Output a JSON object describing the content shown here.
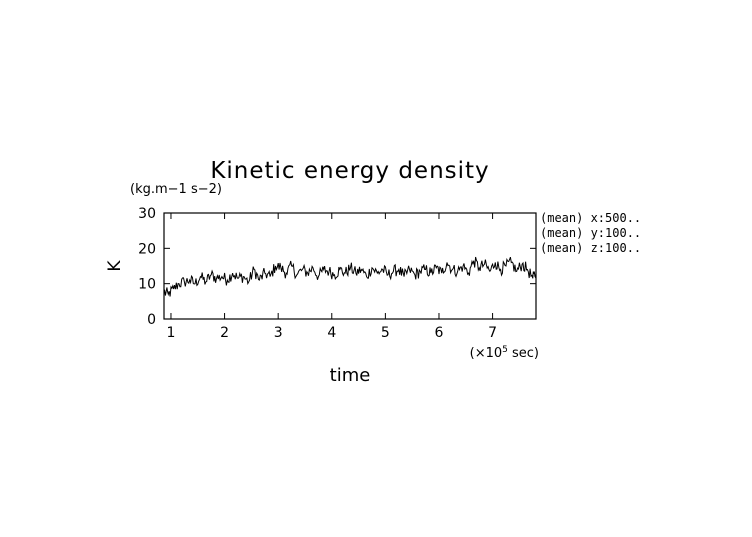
{
  "chart_data": {
    "type": "line",
    "title": "Kinetic energy density",
    "ylabel": "K",
    "yunit": "(kg.m−1 s−2)",
    "xlabel": "time",
    "xunit_prefix": "(×10",
    "xunit_exp": "5",
    "xunit_suffix": " sec)",
    "xlim": [
      0.87,
      7.81
    ],
    "ylim": [
      0,
      30
    ],
    "xticks": [
      1,
      2,
      3,
      4,
      5,
      6,
      7
    ],
    "yticks": [
      0,
      10,
      20,
      30
    ],
    "grid": false,
    "annotations": [
      "(mean) x:500..",
      "(mean) y:100..",
      "(mean) z:100.."
    ],
    "series": [
      {
        "x": [
          0.87,
          0.95,
          1.05,
          1.15,
          1.25,
          1.35,
          1.45,
          1.55,
          1.65,
          1.75,
          1.85,
          1.95,
          2.05,
          2.15,
          2.25,
          2.35,
          2.45,
          2.55,
          2.65,
          2.75,
          2.85,
          2.95,
          3.05,
          3.15,
          3.25,
          3.35,
          3.45,
          3.55,
          3.65,
          3.75,
          3.85,
          3.95,
          4.05,
          4.15,
          4.25,
          4.35,
          4.45,
          4.55,
          4.65,
          4.75,
          4.85,
          4.95,
          5.05,
          5.15,
          5.25,
          5.35,
          5.45,
          5.55,
          5.65,
          5.75,
          5.85,
          5.95,
          6.05,
          6.15,
          6.25,
          6.35,
          6.45,
          6.55,
          6.65,
          6.75,
          6.85,
          6.95,
          7.05,
          7.15,
          7.25,
          7.35,
          7.45,
          7.55,
          7.65,
          7.75,
          7.81
        ],
        "values": [
          7.5,
          7.0,
          8.5,
          10.0,
          10.5,
          11.0,
          10.0,
          12.0,
          10.5,
          12.5,
          11.5,
          12.0,
          11.0,
          13.0,
          11.5,
          12.0,
          10.5,
          14.0,
          11.0,
          13.0,
          12.0,
          15.0,
          14.5,
          13.0,
          15.0,
          12.5,
          14.0,
          13.0,
          14.5,
          12.0,
          14.0,
          13.5,
          12.5,
          14.0,
          13.0,
          14.5,
          13.0,
          14.0,
          12.0,
          14.5,
          13.0,
          14.0,
          12.5,
          13.5,
          14.0,
          12.0,
          14.0,
          12.5,
          13.5,
          14.0,
          13.0,
          14.5,
          13.0,
          16.0,
          14.0,
          13.5,
          15.0,
          13.0,
          16.5,
          14.5,
          15.5,
          13.5,
          16.0,
          14.0,
          15.0,
          16.0,
          13.5,
          15.5,
          14.0,
          11.5,
          13.0
        ]
      }
    ]
  }
}
